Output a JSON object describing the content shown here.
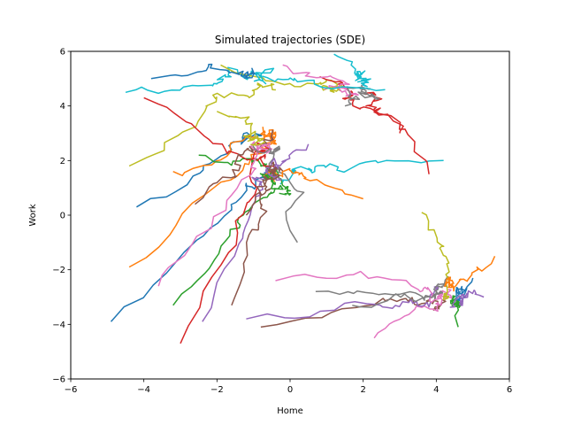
{
  "chart_data": {
    "type": "line",
    "title": "Simulated trajectories (SDE)",
    "xlabel": "Home",
    "ylabel": "Work",
    "xlim": [
      -6,
      6
    ],
    "ylim": [
      -6,
      6
    ],
    "xticks": [
      "−6",
      "−4",
      "−2",
      "0",
      "2",
      "4",
      "6"
    ],
    "yticks": [
      "−6",
      "−4",
      "−2",
      "0",
      "2",
      "4",
      "6"
    ],
    "grid": false,
    "legend": "none",
    "colors": [
      "#1f77b4",
      "#ff7f0e",
      "#2ca02c",
      "#d62728",
      "#9467bd",
      "#8c564b",
      "#e377c2",
      "#7f7f7f",
      "#bcbd22",
      "#17becf"
    ],
    "attractors": [
      {
        "center": [
          -1.0,
          5.0
        ],
        "spread": [
          0.9,
          0.8
        ]
      },
      {
        "center": [
          1.7,
          4.7
        ],
        "spread": [
          0.9,
          0.7
        ]
      },
      {
        "center": [
          -0.5,
          3.0
        ],
        "spread": [
          0.9,
          0.8
        ]
      },
      {
        "center": [
          -0.4,
          1.6
        ],
        "spread": [
          0.7,
          0.8
        ]
      },
      {
        "center": [
          4.4,
          -2.8
        ],
        "spread": [
          0.5,
          0.9
        ]
      }
    ],
    "series_starts": [
      [
        -4.9,
        -3.9
      ],
      [
        -4.4,
        -1.9
      ],
      [
        -3.2,
        -3.3
      ],
      [
        -3.0,
        -4.7
      ],
      [
        -2.4,
        -3.9
      ],
      [
        -0.8,
        -4.1
      ],
      [
        2.3,
        -4.5
      ],
      [
        0.7,
        -2.8
      ],
      [
        -4.4,
        1.8
      ],
      [
        -4.5,
        4.5
      ],
      [
        -4.2,
        0.3
      ],
      [
        -3.2,
        1.6
      ],
      [
        -2.5,
        2.2
      ],
      [
        -4.0,
        4.3
      ],
      [
        -1.2,
        -3.8
      ],
      [
        -1.6,
        -3.3
      ],
      [
        -0.4,
        -2.4
      ],
      [
        1.7,
        -3.3
      ],
      [
        3.6,
        0.1
      ],
      [
        4.2,
        2.0
      ],
      [
        5.0,
        -2.3
      ],
      [
        5.6,
        -1.5
      ],
      [
        4.6,
        -4.1
      ],
      [
        3.8,
        1.5
      ],
      [
        5.3,
        -3.0
      ],
      [
        -2.6,
        0.4
      ],
      [
        -3.6,
        -2.6
      ],
      [
        0.2,
        -1.0
      ],
      [
        -1.9,
        5.5
      ],
      [
        1.2,
        5.9
      ],
      [
        -3.8,
        5.0
      ],
      [
        2.0,
        0.6
      ],
      [
        -0.3,
        0.8
      ],
      [
        3.0,
        3.0
      ],
      [
        0.5,
        2.6
      ],
      [
        -1.2,
        0.0
      ],
      [
        -0.2,
        5.5
      ],
      [
        1.5,
        4.0
      ],
      [
        -2.0,
        3.8
      ],
      [
        2.6,
        4.6
      ]
    ]
  }
}
